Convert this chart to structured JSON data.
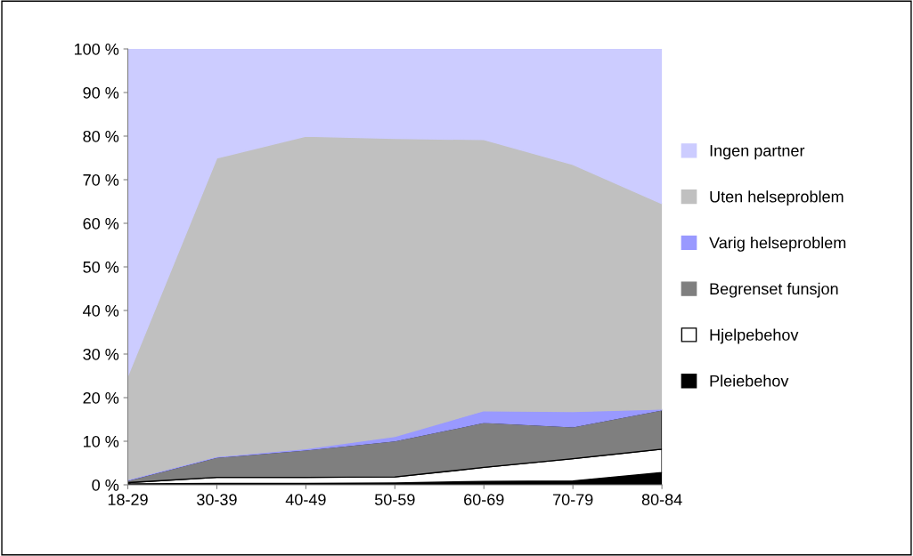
{
  "chart_data": {
    "type": "area",
    "stacked": true,
    "categories": [
      "18-29",
      "30-39",
      "40-49",
      "50-59",
      "60-69",
      "70-79",
      "80-84"
    ],
    "series": [
      {
        "name": "Pleiebehov",
        "color": "#000000",
        "values": [
          0.2,
          0.3,
          0.3,
          0.4,
          0.8,
          0.9,
          2.8
        ]
      },
      {
        "name": "Hjelpebehov",
        "color": "#ffffff",
        "values": [
          0.3,
          1.4,
          1.4,
          1.4,
          3.2,
          5.1,
          5.4
        ]
      },
      {
        "name": "Begrenset funsjon",
        "color": "#7f7f7f",
        "values": [
          0.5,
          4.6,
          6.3,
          8.3,
          10.3,
          7.3,
          9.0
        ]
      },
      {
        "name": "Varig helseproblem",
        "color": "#9999ff",
        "values": [
          0.2,
          0.2,
          0.3,
          1.0,
          2.7,
          3.5,
          0.2
        ]
      },
      {
        "name": "Uten helseproblem",
        "color": "#c0c0c0",
        "values": [
          23.8,
          68.5,
          71.7,
          68.4,
          62.2,
          56.7,
          47.1
        ]
      },
      {
        "name": "Ingen partner",
        "color": "#ccccff",
        "values": [
          75.0,
          25.0,
          20.0,
          20.5,
          20.8,
          26.5,
          35.5
        ]
      }
    ],
    "ylim": [
      0,
      100
    ],
    "yticks": [
      {
        "value": 0,
        "label": "0 %"
      },
      {
        "value": 10,
        "label": "10 %"
      },
      {
        "value": 20,
        "label": "20 %"
      },
      {
        "value": 30,
        "label": "30 %"
      },
      {
        "value": 40,
        "label": "40 %"
      },
      {
        "value": 50,
        "label": "50 %"
      },
      {
        "value": 60,
        "label": "60 %"
      },
      {
        "value": 70,
        "label": "70 %"
      },
      {
        "value": 80,
        "label": "80 %"
      },
      {
        "value": 90,
        "label": "90 %"
      },
      {
        "value": 100,
        "label": "100 %"
      }
    ],
    "grid": false,
    "legend": "right"
  }
}
